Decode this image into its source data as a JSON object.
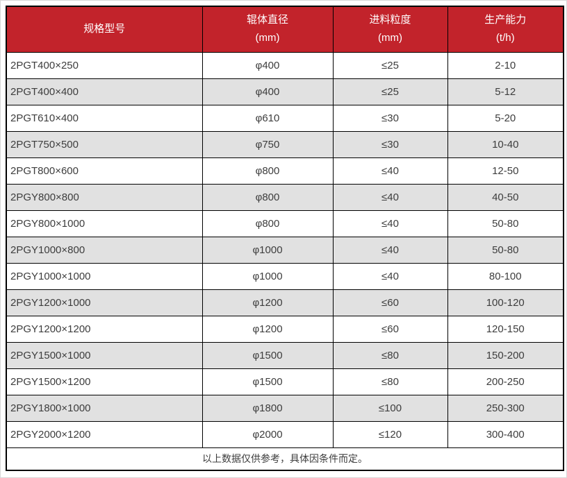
{
  "chart_data": {
    "type": "table",
    "columns": [
      {
        "line1": "规格型号",
        "line2": ""
      },
      {
        "line1": "辊体直径",
        "line2": "(mm)"
      },
      {
        "line1": "进料粒度",
        "line2": "(mm)"
      },
      {
        "line1": "生产能力",
        "line2": "(t/h)"
      }
    ],
    "rows": [
      [
        "2PGT400×250",
        "φ400",
        "≤25",
        "2-10"
      ],
      [
        "2PGT400×400",
        "φ400",
        "≤25",
        "5-12"
      ],
      [
        "2PGT610×400",
        "φ610",
        "≤30",
        "5-20"
      ],
      [
        "2PGT750×500",
        "φ750",
        "≤30",
        "10-40"
      ],
      [
        "2PGT800×600",
        "φ800",
        "≤40",
        "12-50"
      ],
      [
        "2PGY800×800",
        "φ800",
        "≤40",
        "40-50"
      ],
      [
        "2PGY800×1000",
        "φ800",
        "≤40",
        "50-80"
      ],
      [
        "2PGY1000×800",
        "φ1000",
        "≤40",
        "50-80"
      ],
      [
        "2PGY1000×1000",
        "φ1000",
        "≤40",
        "80-100"
      ],
      [
        "2PGY1200×1000",
        "φ1200",
        "≤60",
        "100-120"
      ],
      [
        "2PGY1200×1200",
        "φ1200",
        "≤60",
        "120-150"
      ],
      [
        "2PGY1500×1000",
        "φ1500",
        "≤80",
        "150-200"
      ],
      [
        "2PGY1500×1200",
        "φ1500",
        "≤80",
        "200-250"
      ],
      [
        "2PGY1800×1000",
        "φ1800",
        "≤100",
        "250-300"
      ],
      [
        "2PGY2000×1200",
        "φ2000",
        "≤120",
        "300-400"
      ]
    ],
    "footnote": "以上数据仅供参考，具体因条件而定。"
  },
  "colors": {
    "header_bg": "#c2232b",
    "header_text": "#ffffff",
    "row_bg": "#ffffff",
    "row_alt_bg": "#e1e1e1",
    "border": "#000000",
    "cell_text": "#3d3d3d",
    "frame_border": "#d8d8d8"
  }
}
